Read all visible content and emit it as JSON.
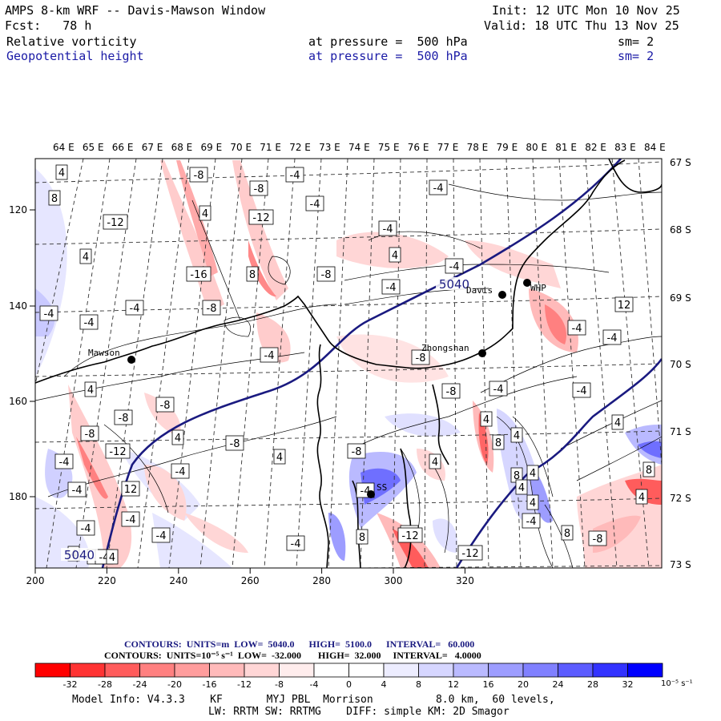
{
  "header": {
    "title": "AMPS 8-km WRF -- Davis-Mawson Window",
    "forecast": "Fcst:   78 h",
    "init": "Init: 12 UTC Mon 10 Nov 25",
    "valid": "Valid: 18 UTC Thu 13 Nov 25",
    "field1": {
      "name": "Relative vorticity",
      "level": "at pressure =  500 hPa",
      "sm": "sm= 2"
    },
    "field2": {
      "name": "Geopotential height",
      "level": "at pressure =  500 hPa",
      "sm": "sm= 2"
    }
  },
  "map": {
    "lon_labels": [
      "64 E",
      "65 E",
      "66 E",
      "67 E",
      "68 E",
      "69 E",
      "70 E",
      "71 E",
      "72 E",
      "73 E",
      "74 E",
      "75 E",
      "76 E",
      "77 E",
      "78 E",
      "79 E",
      "80 E",
      "81 E",
      "82 E",
      "83 E",
      "84 E"
    ],
    "lat_labels": [
      "67 S",
      "68 S",
      "69 S",
      "70 S",
      "71 S",
      "72 S",
      "73 S"
    ],
    "x_axis": [
      "200",
      "220",
      "240",
      "260",
      "280",
      "300",
      "320"
    ],
    "y_axis": [
      "120",
      "140",
      "160",
      "180"
    ],
    "stations": [
      {
        "name": "Mawson"
      },
      {
        "name": "Davis"
      },
      {
        "name": "WHP"
      },
      {
        "name": "Zhongshan"
      },
      {
        "name": "SS"
      }
    ],
    "height_labels": [
      "5040",
      "5040"
    ],
    "vorticity_labels": [
      "4",
      "-8",
      "-4",
      "8",
      "-8",
      "-4",
      "-4",
      "4",
      "-12",
      "-12",
      "-4",
      "4",
      "-4",
      "4",
      "8",
      "-8",
      "-16",
      "-4",
      "-4",
      "-8",
      "-4",
      "-4",
      "12",
      "-4",
      "-4",
      "-4",
      "-8",
      "4",
      "-8",
      "-4",
      "-8",
      "-4",
      "-8",
      "4",
      "4",
      "4",
      "-8",
      "-12",
      "4",
      "-4",
      "-8",
      "4",
      "4",
      "-4",
      "8",
      "12",
      "-4",
      "8",
      "-4",
      "4",
      "-4",
      "-4",
      "-4",
      "4",
      "-4",
      "8",
      "-4",
      "8",
      "-12",
      "-8",
      "4",
      "-4",
      "4",
      "-8",
      "-12",
      "-4",
      "8",
      "4",
      "-4",
      "4"
    ]
  },
  "footer": {
    "contours1": "CONTOURS:  UNITS=m  LOW=  5040.0      HIGH=  5100.0      INTERVAL=   60.000",
    "contours2": "CONTOURS:  UNITS=10⁻⁵ s⁻¹  LOW=  -32.000       HIGH=  32.000     INTERVAL=   4.0000",
    "colorbar_labels": [
      "-32",
      "-28",
      "-24",
      "-20",
      "-16",
      "-12",
      "-8",
      "-4",
      "0",
      "4",
      "8",
      "12",
      "16",
      "20",
      "24",
      "28",
      "32"
    ],
    "colorbar_unit": "10⁻⁵ s⁻¹",
    "colorbar_colors": [
      "#ff0000",
      "#ff3333",
      "#ff5c5c",
      "#ff8080",
      "#ff9d9d",
      "#ffbaba",
      "#ffd6d6",
      "#ffeded",
      "#ffffff",
      "#ffffff",
      "#ededff",
      "#d6d6ff",
      "#babaff",
      "#9d9dff",
      "#8080ff",
      "#5c5cff",
      "#3333ff",
      "#0000ff"
    ],
    "model_info": "Model Info: V4.3.3    KF       MYJ PBL  Morrison          8.0 km,  60 levels,",
    "model_info2": "LW: RRTM SW: RRTMG    DIFF: simple KM: 2D Smagor"
  }
}
